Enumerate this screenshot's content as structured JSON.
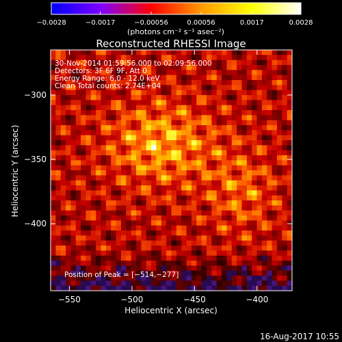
{
  "chart_data": {
    "type": "heatmap",
    "title": "Reconstructed RHESSI Image",
    "xlabel": "Heliocentric X (arcsec)",
    "ylabel": "Heliocentric Y (arcsec)",
    "xlim": [
      -565,
      -372
    ],
    "ylim": [
      -452,
      -265
    ],
    "xticks": [
      -550,
      -500,
      -450,
      -400
    ],
    "xtick_labels": [
      "−550",
      "−500",
      "−450",
      "−400"
    ],
    "yticks": [
      -300,
      -350,
      -400
    ],
    "ytick_labels": [
      "−300",
      "−350",
      "−400"
    ],
    "colorbar": {
      "min": -0.0028,
      "max": 0.0028,
      "ticks": [
        -0.0028,
        -0.0017,
        -0.00056,
        0.00056,
        0.0017,
        0.0028
      ],
      "tick_labels": [
        "−0.0028",
        "−0.0017",
        "−0.00056",
        "0.00056",
        "0.0017",
        "0.0028"
      ],
      "unit": "(photons cm⁻² s⁻¹ asec⁻²)",
      "stops": [
        "#0000ff",
        "#7f00ff",
        "#ff0000",
        "#ff9900",
        "#ffff00",
        "#ffffff"
      ]
    },
    "info_lines": [
      "30-Nov-2014 01:59:56.000 to 02:09:56.000",
      "Detectors: 3F 6F 9F, Att 0",
      "Energy Range: 6.0 - 12.0 keV",
      "Clean    Total counts: 2.74E+04"
    ],
    "peak_text": "Position of Peak = [−514,−277]",
    "peak": [
      -514,
      -277
    ],
    "grid_cells": [
      48,
      48
    ],
    "colors": {
      "background": "#000000",
      "text": "#ffffff",
      "image_bg": "#000000"
    }
  },
  "footer": {
    "timestamp": "16-Aug-2017 10:55"
  }
}
